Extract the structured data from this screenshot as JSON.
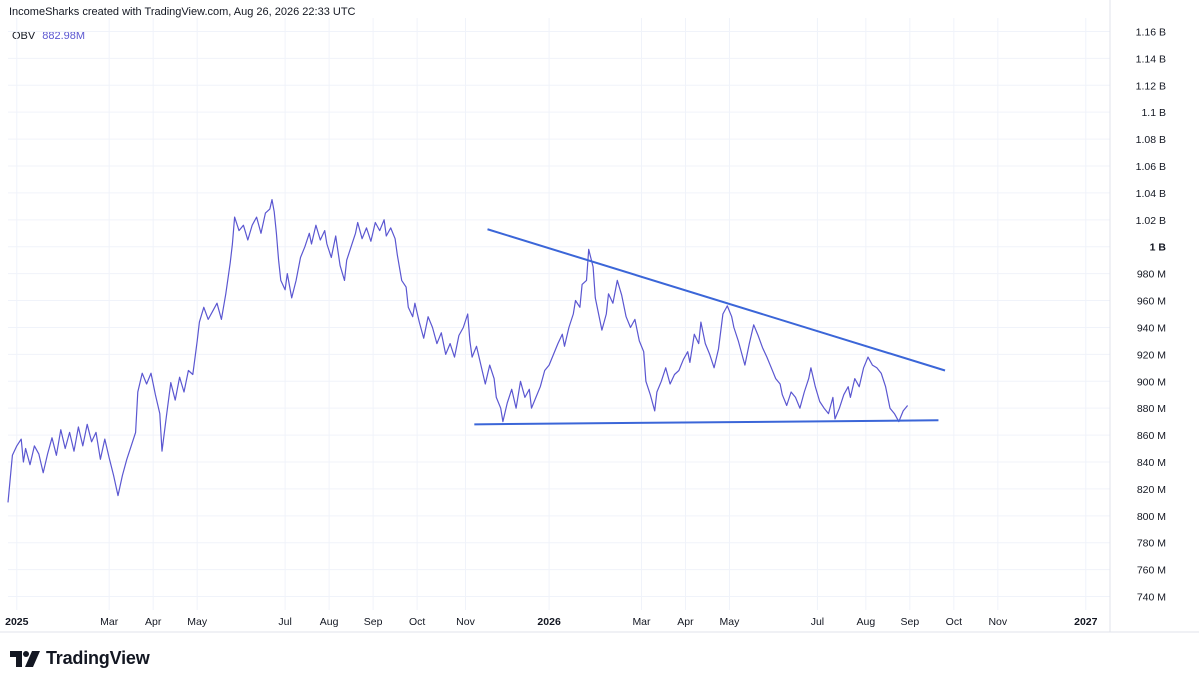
{
  "header": {
    "title": "IncomeSharks created with TradingView.com, Aug 26, 2026 22:33 UTC"
  },
  "legend": {
    "name": "OBV",
    "value": "882.98M"
  },
  "brand": {
    "name": "TradingView"
  },
  "colors": {
    "series": "#5b57d1",
    "trendline": "#3b66d8",
    "grid": "#f0f3fa",
    "text": "#131722"
  },
  "chart_data": {
    "type": "line",
    "title": "",
    "xlabel": "",
    "ylabel": "",
    "ylim": [
      730,
      1170
    ],
    "y_ticks": [
      {
        "v": 1160,
        "label": "1.16 B"
      },
      {
        "v": 1140,
        "label": "1.14 B"
      },
      {
        "v": 1120,
        "label": "1.12 B"
      },
      {
        "v": 1100,
        "label": "1.1 B"
      },
      {
        "v": 1080,
        "label": "1.08 B"
      },
      {
        "v": 1060,
        "label": "1.06 B"
      },
      {
        "v": 1040,
        "label": "1.04 B"
      },
      {
        "v": 1020,
        "label": "1.02 B"
      },
      {
        "v": 1000,
        "label": "1 B",
        "bold": true
      },
      {
        "v": 980,
        "label": "980 M"
      },
      {
        "v": 960,
        "label": "960 M"
      },
      {
        "v": 940,
        "label": "940 M"
      },
      {
        "v": 920,
        "label": "920 M"
      },
      {
        "v": 900,
        "label": "900 M"
      },
      {
        "v": 880,
        "label": "880 M"
      },
      {
        "v": 860,
        "label": "860 M"
      },
      {
        "v": 840,
        "label": "840 M"
      },
      {
        "v": 820,
        "label": "820 M"
      },
      {
        "v": 800,
        "label": "800 M"
      },
      {
        "v": 780,
        "label": "780 M"
      },
      {
        "v": 760,
        "label": "760 M"
      },
      {
        "v": 740,
        "label": "740 M"
      }
    ],
    "x_ticks": [
      {
        "x": 0,
        "label": "2025",
        "bold": true
      },
      {
        "x": 2.1,
        "label": "Mar"
      },
      {
        "x": 3.1,
        "label": "Apr"
      },
      {
        "x": 4.1,
        "label": "May"
      },
      {
        "x": 6.1,
        "label": "Jul"
      },
      {
        "x": 7.1,
        "label": "Aug"
      },
      {
        "x": 8.1,
        "label": "Sep"
      },
      {
        "x": 9.1,
        "label": "Oct"
      },
      {
        "x": 10.2,
        "label": "Nov"
      },
      {
        "x": 12.1,
        "label": "2026",
        "bold": true
      },
      {
        "x": 14.2,
        "label": "Mar"
      },
      {
        "x": 15.2,
        "label": "Apr"
      },
      {
        "x": 16.2,
        "label": "May"
      },
      {
        "x": 18.2,
        "label": "Jul"
      },
      {
        "x": 19.3,
        "label": "Aug"
      },
      {
        "x": 20.3,
        "label": "Sep"
      },
      {
        "x": 21.3,
        "label": "Oct"
      },
      {
        "x": 22.3,
        "label": "Nov"
      },
      {
        "x": 24.3,
        "label": "2027",
        "bold": true
      }
    ],
    "xlim": [
      -0.2,
      24.85
    ],
    "series": [
      {
        "name": "OBV",
        "points": [
          [
            -0.2,
            810
          ],
          [
            -0.1,
            845
          ],
          [
            0.0,
            852
          ],
          [
            0.1,
            857
          ],
          [
            0.15,
            840
          ],
          [
            0.2,
            850
          ],
          [
            0.3,
            838
          ],
          [
            0.4,
            852
          ],
          [
            0.5,
            846
          ],
          [
            0.6,
            832
          ],
          [
            0.7,
            846
          ],
          [
            0.8,
            858
          ],
          [
            0.9,
            845
          ],
          [
            1.0,
            864
          ],
          [
            1.1,
            850
          ],
          [
            1.2,
            862
          ],
          [
            1.3,
            848
          ],
          [
            1.4,
            866
          ],
          [
            1.5,
            852
          ],
          [
            1.6,
            868
          ],
          [
            1.7,
            855
          ],
          [
            1.8,
            862
          ],
          [
            1.9,
            842
          ],
          [
            2.0,
            857
          ],
          [
            2.1,
            843
          ],
          [
            2.2,
            830
          ],
          [
            2.3,
            815
          ],
          [
            2.4,
            830
          ],
          [
            2.5,
            842
          ],
          [
            2.6,
            852
          ],
          [
            2.7,
            862
          ],
          [
            2.75,
            892
          ],
          [
            2.85,
            906
          ],
          [
            2.95,
            898
          ],
          [
            3.05,
            906
          ],
          [
            3.15,
            890
          ],
          [
            3.25,
            876
          ],
          [
            3.3,
            848
          ],
          [
            3.4,
            874
          ],
          [
            3.5,
            899
          ],
          [
            3.6,
            886
          ],
          [
            3.7,
            903
          ],
          [
            3.8,
            892
          ],
          [
            3.9,
            908
          ],
          [
            4.0,
            905
          ],
          [
            4.1,
            930
          ],
          [
            4.15,
            944
          ],
          [
            4.25,
            955
          ],
          [
            4.35,
            946
          ],
          [
            4.45,
            952
          ],
          [
            4.55,
            958
          ],
          [
            4.65,
            946
          ],
          [
            4.75,
            965
          ],
          [
            4.85,
            988
          ],
          [
            4.9,
            1002
          ],
          [
            4.95,
            1022
          ],
          [
            5.05,
            1012
          ],
          [
            5.15,
            1016
          ],
          [
            5.25,
            1005
          ],
          [
            5.35,
            1016
          ],
          [
            5.45,
            1022
          ],
          [
            5.55,
            1010
          ],
          [
            5.65,
            1025
          ],
          [
            5.75,
            1028
          ],
          [
            5.8,
            1035
          ],
          [
            5.85,
            1026
          ],
          [
            5.9,
            1010
          ],
          [
            5.95,
            990
          ],
          [
            6.0,
            975
          ],
          [
            6.1,
            968
          ],
          [
            6.15,
            980
          ],
          [
            6.25,
            962
          ],
          [
            6.35,
            975
          ],
          [
            6.45,
            992
          ],
          [
            6.55,
            1000
          ],
          [
            6.65,
            1010
          ],
          [
            6.7,
            1002
          ],
          [
            6.8,
            1016
          ],
          [
            6.9,
            1005
          ],
          [
            7.0,
            1012
          ],
          [
            7.05,
            1002
          ],
          [
            7.15,
            992
          ],
          [
            7.25,
            1008
          ],
          [
            7.35,
            986
          ],
          [
            7.45,
            975
          ],
          [
            7.5,
            990
          ],
          [
            7.6,
            1000
          ],
          [
            7.7,
            1010
          ],
          [
            7.75,
            1018
          ],
          [
            7.85,
            1006
          ],
          [
            7.95,
            1014
          ],
          [
            8.05,
            1004
          ],
          [
            8.15,
            1018
          ],
          [
            8.25,
            1012
          ],
          [
            8.35,
            1020
          ],
          [
            8.4,
            1008
          ],
          [
            8.5,
            1014
          ],
          [
            8.6,
            1006
          ],
          [
            8.65,
            994
          ],
          [
            8.75,
            975
          ],
          [
            8.85,
            970
          ],
          [
            8.9,
            955
          ],
          [
            9.0,
            948
          ],
          [
            9.05,
            958
          ],
          [
            9.15,
            944
          ],
          [
            9.25,
            932
          ],
          [
            9.35,
            948
          ],
          [
            9.45,
            940
          ],
          [
            9.55,
            928
          ],
          [
            9.65,
            936
          ],
          [
            9.75,
            920
          ],
          [
            9.85,
            928
          ],
          [
            9.95,
            918
          ],
          [
            10.05,
            934
          ],
          [
            10.15,
            940
          ],
          [
            10.25,
            950
          ],
          [
            10.3,
            930
          ],
          [
            10.35,
            918
          ],
          [
            10.45,
            926
          ],
          [
            10.55,
            912
          ],
          [
            10.65,
            898
          ],
          [
            10.75,
            912
          ],
          [
            10.85,
            902
          ],
          [
            10.9,
            888
          ],
          [
            11.0,
            880
          ],
          [
            11.05,
            870
          ],
          [
            11.15,
            884
          ],
          [
            11.25,
            894
          ],
          [
            11.35,
            880
          ],
          [
            11.45,
            900
          ],
          [
            11.55,
            888
          ],
          [
            11.65,
            894
          ],
          [
            11.7,
            880
          ],
          [
            11.8,
            888
          ],
          [
            11.9,
            896
          ],
          [
            12.0,
            908
          ],
          [
            12.1,
            912
          ],
          [
            12.2,
            920
          ],
          [
            12.3,
            928
          ],
          [
            12.4,
            935
          ],
          [
            12.45,
            926
          ],
          [
            12.55,
            940
          ],
          [
            12.65,
            950
          ],
          [
            12.7,
            960
          ],
          [
            12.8,
            955
          ],
          [
            12.85,
            972
          ],
          [
            12.95,
            975
          ],
          [
            13.0,
            998
          ],
          [
            13.1,
            985
          ],
          [
            13.15,
            962
          ],
          [
            13.25,
            946
          ],
          [
            13.3,
            938
          ],
          [
            13.4,
            950
          ],
          [
            13.45,
            965
          ],
          [
            13.55,
            958
          ],
          [
            13.65,
            975
          ],
          [
            13.75,
            964
          ],
          [
            13.85,
            948
          ],
          [
            13.95,
            940
          ],
          [
            14.05,
            946
          ],
          [
            14.15,
            930
          ],
          [
            14.25,
            922
          ],
          [
            14.3,
            900
          ],
          [
            14.4,
            890
          ],
          [
            14.5,
            878
          ],
          [
            14.55,
            892
          ],
          [
            14.65,
            900
          ],
          [
            14.75,
            910
          ],
          [
            14.85,
            898
          ],
          [
            14.95,
            905
          ],
          [
            15.05,
            908
          ],
          [
            15.15,
            916
          ],
          [
            15.25,
            922
          ],
          [
            15.3,
            914
          ],
          [
            15.4,
            935
          ],
          [
            15.5,
            928
          ],
          [
            15.55,
            944
          ],
          [
            15.65,
            928
          ],
          [
            15.75,
            920
          ],
          [
            15.85,
            910
          ],
          [
            15.95,
            924
          ],
          [
            16.05,
            950
          ],
          [
            16.15,
            956
          ],
          [
            16.25,
            948
          ],
          [
            16.3,
            940
          ],
          [
            16.4,
            930
          ],
          [
            16.5,
            918
          ],
          [
            16.55,
            912
          ],
          [
            16.65,
            928
          ],
          [
            16.75,
            942
          ],
          [
            16.85,
            934
          ],
          [
            16.95,
            925
          ],
          [
            17.05,
            918
          ],
          [
            17.15,
            910
          ],
          [
            17.25,
            902
          ],
          [
            17.35,
            898
          ],
          [
            17.4,
            890
          ],
          [
            17.5,
            882
          ],
          [
            17.6,
            892
          ],
          [
            17.7,
            888
          ],
          [
            17.8,
            880
          ],
          [
            17.9,
            892
          ],
          [
            18.0,
            902
          ],
          [
            18.05,
            910
          ],
          [
            18.15,
            896
          ],
          [
            18.25,
            885
          ],
          [
            18.35,
            880
          ],
          [
            18.45,
            876
          ],
          [
            18.55,
            888
          ],
          [
            18.6,
            872
          ],
          [
            18.7,
            880
          ],
          [
            18.8,
            890
          ],
          [
            18.9,
            896
          ],
          [
            18.95,
            888
          ],
          [
            19.05,
            902
          ],
          [
            19.15,
            896
          ],
          [
            19.25,
            910
          ],
          [
            19.35,
            918
          ],
          [
            19.45,
            912
          ],
          [
            19.55,
            910
          ],
          [
            19.65,
            906
          ],
          [
            19.75,
            896
          ],
          [
            19.85,
            880
          ],
          [
            19.95,
            876
          ],
          [
            20.05,
            870
          ],
          [
            20.15,
            878
          ],
          [
            20.25,
            882
          ]
        ]
      }
    ],
    "trendlines": [
      {
        "name": "descending-resistance",
        "from": [
          10.7,
          1013
        ],
        "to": [
          21.1,
          908
        ]
      },
      {
        "name": "flat-support",
        "from": [
          10.4,
          868
        ],
        "to": [
          20.95,
          871
        ]
      }
    ]
  }
}
